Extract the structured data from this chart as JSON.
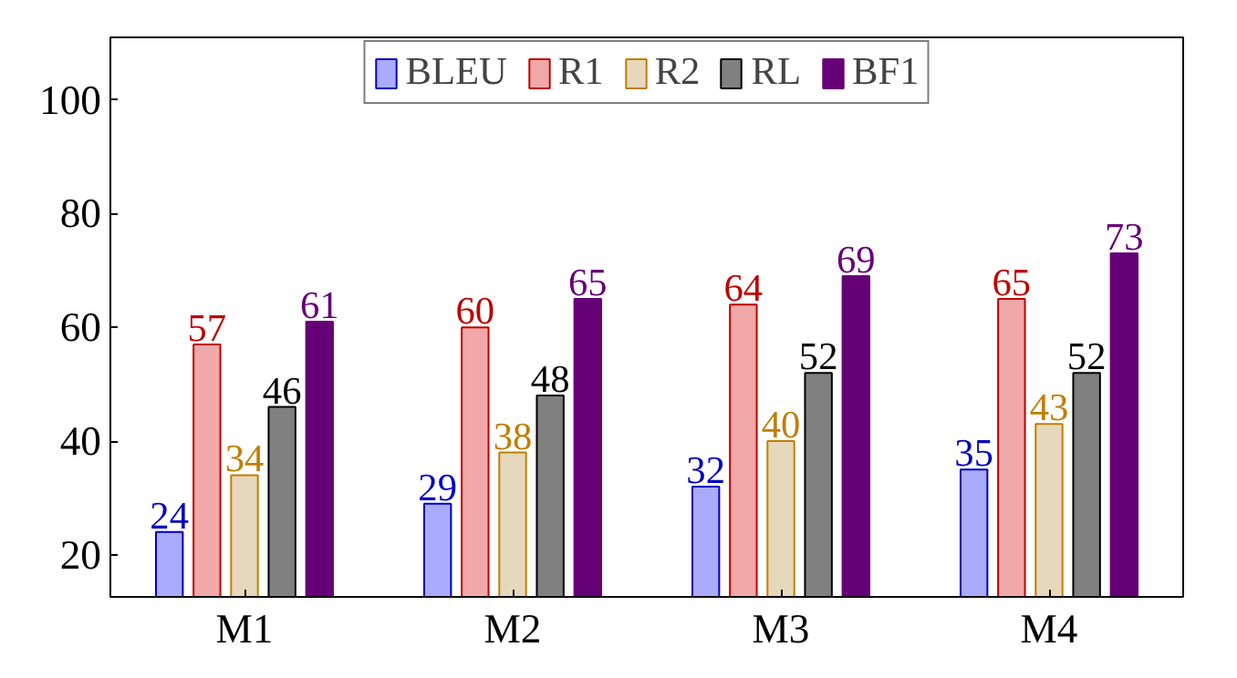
{
  "chart_data": {
    "type": "bar",
    "categories": [
      "M1",
      "M2",
      "M3",
      "M4"
    ],
    "series": [
      {
        "name": "BLEU",
        "color": "#aaaaff",
        "values": [
          24,
          29,
          32,
          35
        ]
      },
      {
        "name": "R1",
        "color": "#f0a8a8",
        "values": [
          57,
          60,
          64,
          65
        ]
      },
      {
        "name": "R2",
        "color": "#e6d8bc",
        "values": [
          34,
          38,
          40,
          43
        ]
      },
      {
        "name": "RL",
        "color": "#808080",
        "values": [
          46,
          48,
          52,
          52
        ]
      },
      {
        "name": "BF1",
        "color": "#660077",
        "values": [
          61,
          65,
          69,
          73
        ]
      }
    ],
    "ylim": [
      12.6,
      111
    ],
    "yticks": [
      20,
      40,
      60,
      80,
      100
    ],
    "data_labels": true,
    "grid": false,
    "legend": "top"
  }
}
